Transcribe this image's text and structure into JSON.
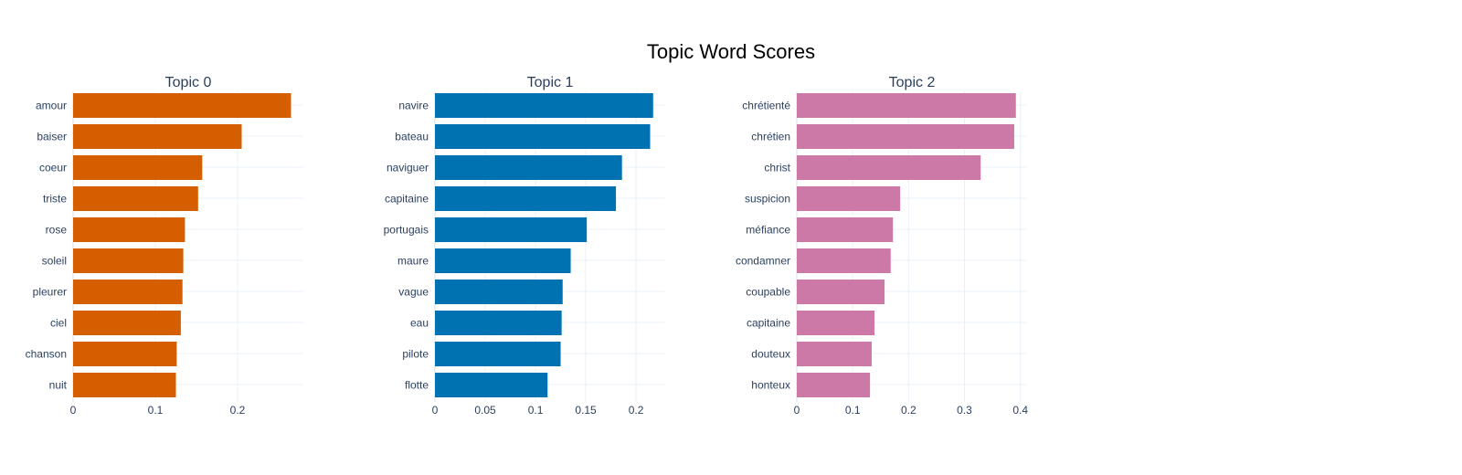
{
  "chart_data": {
    "type": "bar",
    "orientation": "horizontal",
    "title": "Topic Word Scores",
    "grid": true,
    "panels": [
      {
        "title": "Topic 0",
        "color": "#D55E00",
        "categories": [
          "amour",
          "baiser",
          "coeur",
          "triste",
          "rose",
          "soleil",
          "pleurer",
          "ciel",
          "chanson",
          "nuit"
        ],
        "values": [
          0.265,
          0.205,
          0.157,
          0.152,
          0.136,
          0.134,
          0.133,
          0.131,
          0.126,
          0.125
        ],
        "xlim": [
          0,
          0.28
        ],
        "xticks": [
          0,
          0.1,
          0.2
        ],
        "xtick_labels": [
          "0",
          "0.1",
          "0.2"
        ]
      },
      {
        "title": "Topic 1",
        "color": "#0072B2",
        "categories": [
          "navire",
          "bateau",
          "naviguer",
          "capitaine",
          "portugais",
          "maure",
          "vague",
          "eau",
          "pilote",
          "flotte"
        ],
        "values": [
          0.217,
          0.214,
          0.186,
          0.18,
          0.151,
          0.135,
          0.127,
          0.126,
          0.125,
          0.112
        ],
        "xlim": [
          0,
          0.229
        ],
        "xticks": [
          0,
          0.05,
          0.1,
          0.15,
          0.2
        ],
        "xtick_labels": [
          "0",
          "0.05",
          "0.1",
          "0.15",
          "0.2"
        ]
      },
      {
        "title": "Topic 2",
        "color": "#CC79A7",
        "categories": [
          "chrétienté",
          "chrétien",
          "christ",
          "suspicion",
          "méfiance",
          "condamner",
          "coupable",
          "capitaine",
          "douteux",
          "honteux"
        ],
        "values": [
          0.392,
          0.389,
          0.329,
          0.185,
          0.172,
          0.168,
          0.157,
          0.139,
          0.134,
          0.131
        ],
        "xlim": [
          0,
          0.412
        ],
        "xticks": [
          0,
          0.1,
          0.2,
          0.3,
          0.4
        ],
        "xtick_labels": [
          "0",
          "0.1",
          "0.2",
          "0.3",
          "0.4"
        ]
      }
    ]
  }
}
